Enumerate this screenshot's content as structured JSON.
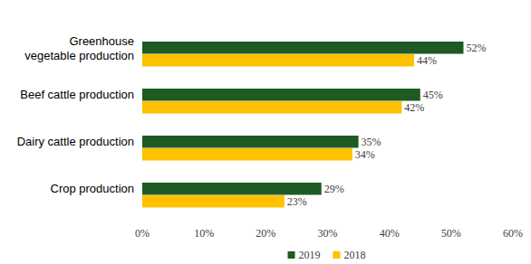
{
  "chart_data": {
    "type": "bar",
    "orientation": "horizontal",
    "categories": [
      "Greenhouse vegetable production",
      "Beef cattle production",
      "Dairy cattle production",
      "Crop production"
    ],
    "series": [
      {
        "name": "2019",
        "color": "#1f5a22",
        "values": [
          52,
          45,
          35,
          29
        ],
        "value_labels": [
          "52%",
          "45%",
          "35%",
          "29%"
        ]
      },
      {
        "name": "2018",
        "color": "#ffc000",
        "values": [
          44,
          42,
          34,
          23
        ],
        "value_labels": [
          "44%",
          "42%",
          "34%",
          "23%"
        ]
      }
    ],
    "xlim": [
      0,
      60
    ],
    "xticks": [
      {
        "value": 0,
        "label": "0%"
      },
      {
        "value": 10,
        "label": "10%"
      },
      {
        "value": 20,
        "label": "20%"
      },
      {
        "value": 30,
        "label": "30%"
      },
      {
        "value": 40,
        "label": "40%"
      },
      {
        "value": 50,
        "label": "50%"
      },
      {
        "value": 60,
        "label": "60%"
      }
    ],
    "grid": false,
    "data_labels": true,
    "legend": "bottom"
  }
}
